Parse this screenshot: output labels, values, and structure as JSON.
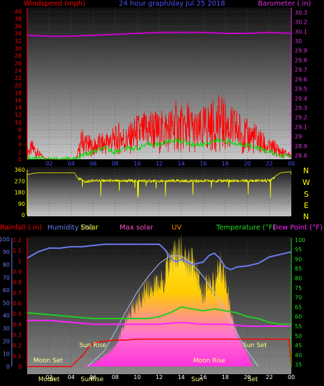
{
  "header": {
    "left": "Windspeed (mph)",
    "center": "24 hour graph/day  Jul 25 2018",
    "right": "Barometer (.in)"
  },
  "panel2": {
    "right_labels": [
      "N",
      "W",
      "S",
      "E",
      "N"
    ]
  },
  "panel3": {
    "labels": {
      "rain": "Rainfall (.in)",
      "hum": "Humidity (%)",
      "solar": "Solar",
      "maxsolar": "Max solar",
      "uv": "UV",
      "temp": "Temperature (°F)",
      "dew": "Dew Point (°F)"
    },
    "annotations": {
      "moonset": "Moon Set",
      "sunrise": "Sun Rise",
      "moonrise": "Moon Rise",
      "sunset": "Sun Set"
    },
    "bottom_overlay": [
      "Moon",
      "Set",
      "Sun",
      "Rise",
      "Sun",
      "Set"
    ]
  },
  "colors": {
    "wind": "#ff0000",
    "gust": "#00dd00",
    "baro": "#cc00cc",
    "dir": "#ffff00",
    "humidity": "#6a7cf0",
    "temp": "#22cc22",
    "dew": "#ff22ff",
    "rain": "#ff0000",
    "maxsolar": "#bbbbff"
  },
  "chart_data": [
    {
      "type": "line",
      "title": "24 hour graph/day  Jul 25 2018",
      "xticks": [
        "02",
        "04",
        "06",
        "08",
        "10",
        "12",
        "14",
        "16",
        "18",
        "20",
        "22",
        "00"
      ],
      "y_left": {
        "label": "Windspeed (mph)",
        "ticks": [
          0,
          2,
          4,
          6,
          8,
          10,
          12,
          14,
          16,
          18,
          20,
          22,
          24,
          26,
          28,
          30,
          32,
          34,
          36,
          38,
          40
        ],
        "range": [
          0,
          41
        ]
      },
      "y_right": {
        "label": "Barometer (.in)",
        "ticks": [
          28.8,
          28.9,
          29,
          29.1,
          29.2,
          29.3,
          29.4,
          29.5,
          29.6,
          29.7,
          29.8,
          29.9,
          30,
          30.1,
          30.2,
          30.3
        ],
        "range": [
          28.76,
          30.35
        ]
      },
      "series": [
        {
          "name": "Windspeed",
          "axis": "left",
          "x_hours": [
            0,
            0.5,
            1,
            1.5,
            2,
            2.5,
            3,
            3.5,
            4,
            4.5,
            5,
            5.5,
            6,
            6.5,
            7,
            7.5,
            8,
            8.5,
            9,
            9.5,
            10,
            10.5,
            11,
            11.5,
            12,
            12.5,
            13,
            13.5,
            14,
            14.5,
            15,
            15.5,
            16,
            16.5,
            17,
            17.5,
            18,
            18.5,
            19,
            19.5,
            20,
            20.5,
            21,
            21.5,
            22,
            22.5,
            23,
            23.5,
            24
          ],
          "values": [
            2,
            3,
            1.5,
            0.5,
            0,
            0,
            0,
            0,
            0,
            0.5,
            5,
            4,
            3,
            4,
            4,
            5,
            5,
            6,
            5,
            6,
            7,
            7,
            8,
            8,
            7,
            8,
            8,
            9,
            8,
            9,
            8,
            7,
            8,
            9,
            9,
            10,
            9,
            8,
            8,
            7,
            6,
            6,
            5,
            4,
            3,
            3,
            2,
            1.5,
            1
          ]
        },
        {
          "name": "Gust",
          "axis": "left",
          "x_hours": [
            0,
            1,
            2,
            3,
            4,
            4.5,
            5,
            6,
            7,
            8,
            9,
            10,
            11,
            12,
            13,
            14,
            15,
            16,
            17,
            18,
            19,
            20,
            21,
            22,
            23,
            24
          ],
          "values": [
            0.5,
            0.5,
            0,
            0,
            0,
            0,
            1,
            2,
            3,
            2,
            3,
            3,
            4,
            4,
            5,
            5,
            4,
            4,
            5,
            5,
            4,
            4,
            3,
            2,
            1,
            1
          ]
        },
        {
          "name": "Barometer",
          "axis": "right",
          "x_hours": [
            0,
            2,
            4,
            6,
            8,
            10,
            12,
            14,
            16,
            18,
            20,
            22,
            24
          ],
          "values": [
            30.06,
            30.05,
            30.05,
            30.06,
            30.07,
            30.08,
            30.09,
            30.09,
            30.09,
            30.08,
            30.08,
            30.09,
            30.08
          ]
        }
      ]
    },
    {
      "type": "line",
      "y_left": {
        "ticks": [
          0,
          90,
          180,
          270,
          360
        ],
        "range": [
          0,
          360
        ]
      },
      "series": [
        {
          "name": "Wind direction",
          "x_hours": [
            0,
            0.5,
            1,
            2,
            3,
            4,
            4.3,
            4.6,
            5,
            5.3,
            6,
            8,
            10,
            12,
            14,
            16,
            18,
            20,
            22,
            23,
            24
          ],
          "values": [
            320,
            330,
            335,
            335,
            335,
            335,
            335,
            290,
            280,
            260,
            275,
            270,
            272,
            268,
            270,
            270,
            272,
            270,
            275,
            335,
            345
          ]
        }
      ]
    },
    {
      "type": "area",
      "xticks": [
        "02",
        "04",
        "06",
        "08",
        "10",
        "12",
        "14",
        "16",
        "18",
        "20",
        "22",
        "00"
      ],
      "y_left_rain": {
        "label": "Rainfall (.in)",
        "ticks": [
          0,
          0.1,
          0.2,
          0.3,
          0.4,
          0.5,
          0.6,
          0.7,
          0.8,
          0.9,
          1,
          1.1,
          1.2
        ],
        "range": [
          0,
          1.22
        ]
      },
      "y_left_hum": {
        "label": "Humidity (%)",
        "ticks": [
          0,
          10,
          20,
          30,
          40,
          50,
          60,
          70,
          80,
          90,
          100
        ],
        "range": [
          0,
          101
        ]
      },
      "y_right_temp": {
        "label": "Temperature (°F)",
        "ticks": [
          35,
          40,
          45,
          50,
          55,
          60,
          65,
          70,
          75,
          80,
          85,
          90,
          95,
          100
        ],
        "range": [
          34,
          101
        ]
      },
      "series": [
        {
          "name": "Humidity",
          "axis": "hum",
          "x_hours": [
            0,
            1,
            2,
            3,
            4,
            5,
            6,
            7,
            8,
            9,
            10,
            11,
            12,
            12.5,
            13,
            13.5,
            14,
            15,
            16,
            16.5,
            17,
            17.5,
            18,
            18.5,
            19,
            20,
            21,
            22,
            23,
            24
          ],
          "values": [
            85,
            90,
            93,
            93,
            94,
            94,
            95,
            96,
            96,
            96,
            96,
            96,
            96,
            92,
            86,
            82,
            84,
            80,
            82,
            87,
            89,
            85,
            78,
            76,
            78,
            79,
            81,
            86,
            88,
            90
          ]
        },
        {
          "name": "Solar",
          "axis": "uv",
          "x_hours": [
            5,
            6,
            7,
            8,
            9,
            10,
            11,
            12,
            12.5,
            13,
            13.5,
            14,
            14.5,
            15,
            15.5,
            16,
            16.5,
            17,
            17.5,
            18,
            18.5,
            19,
            19.5,
            20,
            20.5
          ],
          "values": [
            0,
            2,
            8,
            15,
            35,
            50,
            60,
            63,
            70,
            84,
            86,
            90,
            78,
            83,
            70,
            54,
            70,
            62,
            80,
            70,
            42,
            28,
            18,
            10,
            0
          ]
        },
        {
          "name": "Max solar",
          "axis": "uv",
          "x_hours": [
            5.5,
            7,
            8,
            9,
            10,
            11,
            12,
            13,
            14,
            15,
            16,
            17,
            18,
            19,
            20,
            21
          ],
          "values": [
            0,
            12,
            27,
            43,
            58,
            70,
            80,
            86,
            86,
            80,
            70,
            58,
            43,
            27,
            12,
            0
          ]
        },
        {
          "name": "Temperature",
          "axis": "temp",
          "x_hours": [
            0,
            2,
            4,
            6,
            8,
            10,
            11,
            12,
            13,
            14,
            15,
            16,
            17,
            18,
            19,
            20,
            21,
            22,
            23,
            24
          ],
          "values": [
            62,
            61,
            60,
            59,
            59,
            59,
            59,
            60,
            62,
            65,
            64,
            63,
            64,
            63,
            62,
            60,
            59,
            57,
            56,
            56
          ]
        },
        {
          "name": "Dew Point",
          "axis": "temp",
          "x_hours": [
            0,
            2,
            4,
            6,
            8,
            10,
            12,
            14,
            16,
            18,
            20,
            22,
            24
          ],
          "values": [
            58,
            58,
            57,
            56,
            56,
            56,
            56,
            57,
            56,
            56,
            55,
            55,
            55
          ]
        },
        {
          "name": "Rainfall",
          "axis": "rain",
          "x_hours": [
            0,
            3,
            4,
            4.2,
            5,
            5.5,
            6,
            7,
            8,
            9,
            10,
            12,
            14,
            16,
            18,
            20,
            22,
            23.5,
            23.8,
            24
          ],
          "values": [
            0,
            0,
            0,
            0.02,
            0.1,
            0.17,
            0.22,
            0.24,
            0.25,
            0.25,
            0.26,
            0.26,
            0.26,
            0.26,
            0.26,
            0.26,
            0.26,
            0.26,
            0.26,
            0
          ]
        }
      ],
      "annotations": [
        {
          "text": "Moon Set",
          "x_hours": 0.8
        },
        {
          "text": "Sun Rise",
          "x_hours": 6.2
        },
        {
          "text": "Moon Rise",
          "x_hours": 15.8
        },
        {
          "text": "Sun Set",
          "x_hours": 20.8
        }
      ]
    }
  ]
}
